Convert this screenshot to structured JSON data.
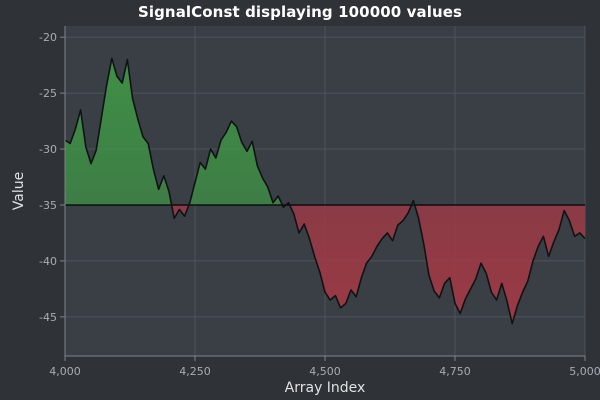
{
  "chart_data": {
    "type": "area",
    "title": "SignalConst displaying 100000 values",
    "xlabel": "Array Index",
    "ylabel": "Value",
    "xlim": [
      4000,
      5000
    ],
    "ylim": [
      -48.5,
      -19
    ],
    "baseline": -35,
    "grid": true,
    "x_ticks": [
      4000,
      4250,
      4500,
      4750,
      5000
    ],
    "x_tick_labels": [
      "4,000",
      "4,250",
      "4,500",
      "4,750",
      "5,000"
    ],
    "y_ticks": [
      -20,
      -25,
      -30,
      -35,
      -40,
      -45
    ],
    "y_tick_labels": [
      "-20",
      "-25",
      "-30",
      "-35",
      "-40",
      "-45"
    ],
    "series": [
      {
        "x": [
          4000,
          4010,
          4020,
          4030,
          4040,
          4050,
          4060,
          4070,
          4080,
          4090,
          4100,
          4110,
          4120,
          4130,
          4140,
          4150,
          4160,
          4170,
          4180,
          4190,
          4200,
          4210,
          4220,
          4230,
          4240,
          4250,
          4260,
          4270,
          4280,
          4290,
          4300,
          4310,
          4320,
          4330,
          4340,
          4350,
          4360,
          4370,
          4380,
          4390,
          4400,
          4410,
          4420,
          4430,
          4440,
          4450,
          4460,
          4470,
          4480,
          4490,
          4500,
          4510,
          4520,
          4530,
          4540,
          4550,
          4560,
          4570,
          4580,
          4590,
          4600,
          4610,
          4620,
          4630,
          4640,
          4650,
          4660,
          4670,
          4680,
          4690,
          4700,
          4710,
          4720,
          4730,
          4740,
          4750,
          4760,
          4770,
          4780,
          4790,
          4800,
          4810,
          4820,
          4830,
          4840,
          4850,
          4860,
          4870,
          4880,
          4890,
          4900,
          4910,
          4920,
          4930,
          4940,
          4950,
          4960,
          4970,
          4980,
          4990,
          5000
        ],
        "values": [
          -29.2,
          -29.5,
          -28.2,
          -26.5,
          -29.8,
          -31.3,
          -30.1,
          -27.2,
          -24.3,
          -21.9,
          -23.5,
          -24.1,
          -22.0,
          -25.5,
          -27.3,
          -28.9,
          -29.5,
          -31.8,
          -33.6,
          -32.4,
          -33.8,
          -36.2,
          -35.4,
          -36.0,
          -34.8,
          -33.0,
          -31.2,
          -31.8,
          -30.0,
          -30.8,
          -29.2,
          -28.5,
          -27.5,
          -28.0,
          -29.4,
          -30.2,
          -29.3,
          -31.5,
          -32.6,
          -33.4,
          -34.8,
          -34.2,
          -35.2,
          -34.8,
          -35.8,
          -37.5,
          -36.7,
          -38.0,
          -39.6,
          -41.0,
          -42.8,
          -43.5,
          -43.1,
          -44.2,
          -43.8,
          -42.6,
          -43.2,
          -41.5,
          -40.2,
          -39.6,
          -38.7,
          -38.0,
          -37.5,
          -38.2,
          -36.8,
          -36.4,
          -35.7,
          -34.6,
          -36.2,
          -38.5,
          -41.3,
          -42.7,
          -43.3,
          -42.0,
          -41.5,
          -43.8,
          -44.7,
          -43.4,
          -42.5,
          -41.6,
          -40.2,
          -41.1,
          -42.8,
          -43.5,
          -42.0,
          -43.6,
          -45.6,
          -44.0,
          -42.8,
          -41.8,
          -40.0,
          -38.7,
          -37.8,
          -39.6,
          -38.3,
          -37.2,
          -35.5,
          -36.4,
          -37.8,
          -37.5,
          -38.0
        ]
      }
    ],
    "colors": {
      "above": "#3f8f46",
      "below": "#9b3a45",
      "line": "#101214",
      "baseline": "#000000",
      "plot_background": "#3a3f46",
      "grid": "#4d535b"
    }
  }
}
